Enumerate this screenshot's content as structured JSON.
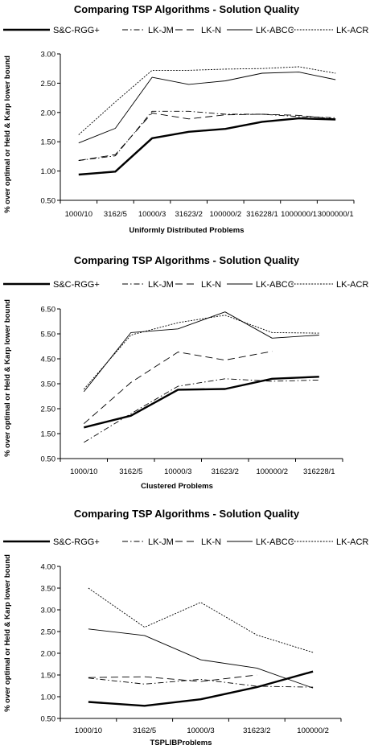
{
  "series_styles": [
    {
      "name": "S&C-RGG+",
      "stroke_width": 2.4,
      "dash": ""
    },
    {
      "name": "LK-JM",
      "stroke_width": 0.9,
      "dash": "7,3,1.5,3"
    },
    {
      "name": "LK-N",
      "stroke_width": 0.9,
      "dash": "9,5"
    },
    {
      "name": "LK-ABCC",
      "stroke_width": 0.9,
      "dash": ""
    },
    {
      "name": "LK-ACR",
      "stroke_width": 0.9,
      "dash": "2,1.6"
    }
  ],
  "chart_data": [
    {
      "type": "line",
      "title": "Comparing TSP Algorithms - Solution Quality",
      "xlabel": "Uniformly Distributed Problems",
      "ylabel": "% over optimal or Held & Karp lower bound",
      "categories": [
        "1000/10",
        "3162/5",
        "10000/3",
        "31623/2",
        "100000/2",
        "316228/1",
        "1000000/1",
        "3000000/1"
      ],
      "ylim": [
        0.5,
        3.0
      ],
      "yticks": [
        "0.50",
        "1.00",
        "1.50",
        "2.00",
        "2.50",
        "3.00"
      ],
      "legend": "top",
      "series": [
        {
          "name": "S&C-RGG+",
          "values": [
            0.94,
            0.99,
            1.56,
            1.67,
            1.72,
            1.84,
            1.9,
            1.88
          ]
        },
        {
          "name": "LK-JM",
          "values": [
            1.18,
            1.26,
            2.02,
            2.02,
            1.97,
            1.97,
            1.93,
            1.91
          ]
        },
        {
          "name": "LK-N",
          "values": [
            1.18,
            1.28,
            1.99,
            1.89,
            1.96,
            1.97,
            1.95,
            1.89
          ]
        },
        {
          "name": "LK-ABCC",
          "values": [
            1.48,
            1.73,
            2.6,
            2.48,
            2.54,
            2.67,
            2.69,
            2.56
          ]
        },
        {
          "name": "LK-ACR",
          "values": [
            1.62,
            2.18,
            2.72,
            2.72,
            2.74,
            2.75,
            2.78,
            2.67
          ]
        }
      ]
    },
    {
      "type": "line",
      "title": "Comparing TSP Algorithms - Solution Quality",
      "xlabel": "Clustered Problems",
      "ylabel": "% over optimal or Held & Karp lower bound",
      "categories": [
        "1000/10",
        "3162/5",
        "10000/3",
        "31623/2",
        "100000/2",
        "316228/1"
      ],
      "ylim": [
        0.5,
        6.5
      ],
      "yticks": [
        "0.50",
        "1.50",
        "2.50",
        "3.50",
        "4.50",
        "5.50",
        "6.50"
      ],
      "legend": "top",
      "series": [
        {
          "name": "S&C-RGG+",
          "values": [
            1.75,
            2.22,
            3.26,
            3.29,
            3.7,
            3.78
          ]
        },
        {
          "name": "LK-JM",
          "values": [
            1.15,
            2.3,
            3.4,
            3.7,
            3.6,
            3.65
          ]
        },
        {
          "name": "LK-N",
          "values": [
            1.9,
            3.55,
            4.77,
            4.45,
            4.8,
            null
          ]
        },
        {
          "name": "LK-ABCC",
          "values": [
            3.18,
            5.55,
            5.7,
            6.38,
            5.33,
            5.45
          ]
        },
        {
          "name": "LK-ACR",
          "values": [
            3.28,
            5.45,
            5.95,
            6.25,
            5.55,
            5.53
          ]
        }
      ]
    },
    {
      "type": "line",
      "title": "Comparing TSP Algorithms - Solution Quality",
      "xlabel": "TSPLIBProblems",
      "ylabel": "% over optimal or Held & Karp lower bound",
      "categories": [
        "1000/10",
        "3162/5",
        "10000/3",
        "31623/2",
        "100000/2"
      ],
      "ylim": [
        0.5,
        4.0
      ],
      "yticks": [
        "0.50",
        "1.00",
        "1.50",
        "2.00",
        "2.50",
        "3.00",
        "3.50",
        "4.00"
      ],
      "legend": "top",
      "series": [
        {
          "name": "S&C-RGG+",
          "values": [
            0.88,
            0.79,
            0.94,
            1.22,
            1.58
          ]
        },
        {
          "name": "LK-JM",
          "values": [
            1.43,
            1.29,
            1.4,
            1.24,
            1.22
          ]
        },
        {
          "name": "LK-N",
          "values": [
            1.44,
            1.46,
            1.35,
            1.5,
            null
          ]
        },
        {
          "name": "LK-ABCC",
          "values": [
            2.56,
            2.41,
            1.85,
            1.66,
            1.2
          ]
        },
        {
          "name": "LK-ACR",
          "values": [
            3.5,
            2.6,
            3.17,
            2.42,
            2.02
          ]
        }
      ]
    }
  ]
}
